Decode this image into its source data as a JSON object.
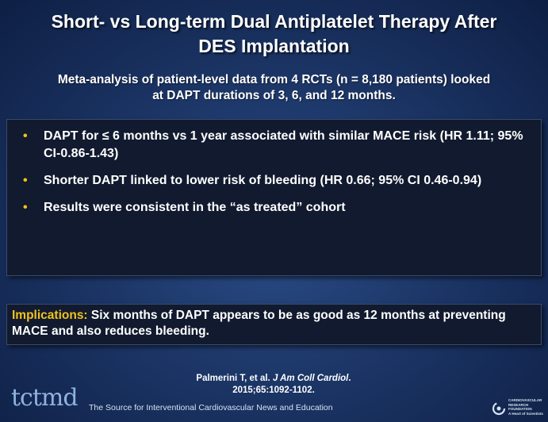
{
  "slide": {
    "title_line1": "Short- vs Long-term Dual Antiplatelet Therapy After",
    "title_line2": "DES Implantation",
    "subtitle_line1": "Meta-analysis of patient-level data from 4 RCTs (n = 8,180 patients) looked",
    "subtitle_line2": "at DAPT durations of 3, 6, and 12 months.",
    "bullet_marker": "•",
    "bullets": [
      "DAPT for ≤ 6 months vs 1 year associated with similar MACE risk (HR 1.11; 95% CI-0.86-1.43)",
      "Shorter DAPT linked to lower risk of bleeding (HR 0.66; 95% CI 0.46-0.94)",
      "Results were consistent in the “as treated” cohort"
    ],
    "implications_label": "Implications:",
    "implications_text": " Six months of DAPT appears to be as good as 12 months at preventing MACE and also reduces bleeding.",
    "citation_authors": "Palmerini T, et al. ",
    "citation_journal": "J Am Coll Cardiol",
    "citation_end": ".",
    "citation_line2": "2015;65:1092-1102."
  },
  "footer": {
    "logo_text": "tctmd",
    "tagline": "The Source for Interventional Cardiovascular News and Education",
    "crf_line1": "CARDIOVASCULAR",
    "crf_line2": "RESEARCH",
    "crf_line3": "FOUNDATION",
    "crf_line4": "A Heart of Scientists"
  },
  "colors": {
    "accent": "#f2c21b",
    "box_bg": "#111a2e",
    "slide_bg": "#1c3667"
  }
}
